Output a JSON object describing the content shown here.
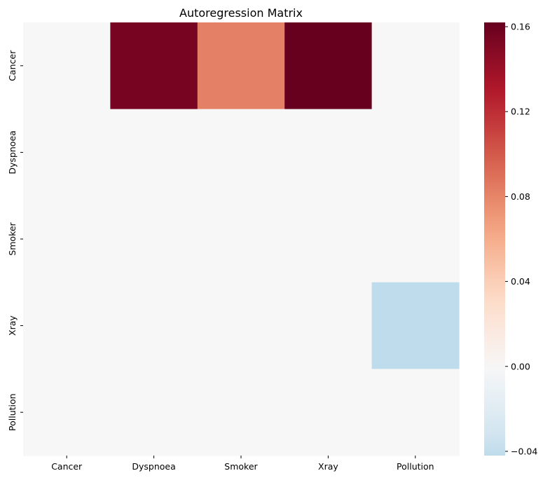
{
  "chart_data": {
    "type": "heatmap",
    "title": "Autoregression Matrix",
    "xlabel": "",
    "ylabel": "",
    "x_categories": [
      "Cancer",
      "Dyspnoea",
      "Smoker",
      "Xray",
      "Pollution"
    ],
    "y_categories": [
      "Cancer",
      "Dyspnoea",
      "Smoker",
      "Xray",
      "Pollution"
    ],
    "values": [
      [
        0,
        0.155,
        0.082,
        0.162,
        0
      ],
      [
        0,
        0,
        0,
        0,
        0
      ],
      [
        0,
        0,
        0,
        0,
        0
      ],
      [
        0,
        0,
        0,
        0,
        -0.042
      ],
      [
        0,
        0,
        0,
        0,
        0
      ]
    ],
    "colormap": "RdBu_r",
    "center": 0,
    "vmin": -0.042,
    "vmax": 0.162,
    "colorbar": {
      "ticks": [
        -0.04,
        0.0,
        0.04,
        0.08,
        0.12,
        0.16
      ],
      "tick_labels": [
        "−0.04",
        "0.00",
        "0.04",
        "0.08",
        "0.12",
        "0.16"
      ]
    }
  }
}
